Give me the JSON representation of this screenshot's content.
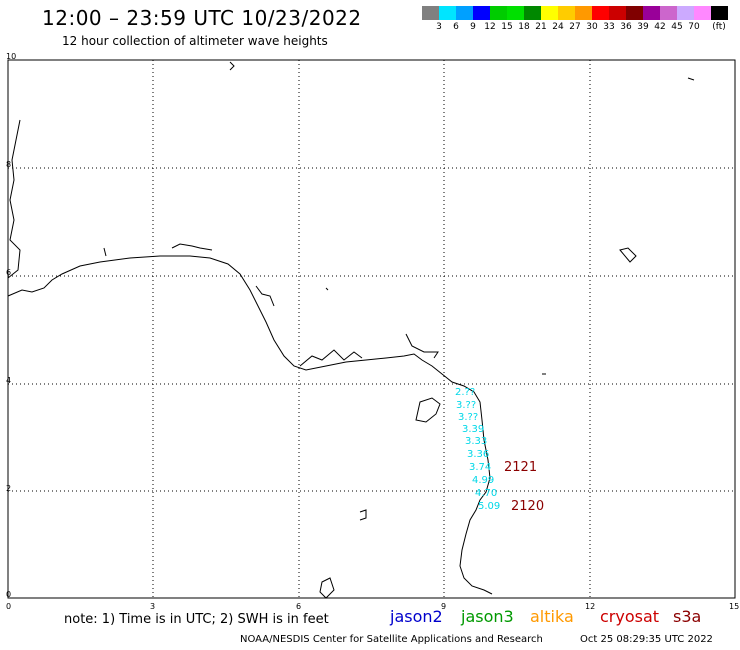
{
  "header": {
    "title": "12:00 – 23:59 UTC 10/23/2022",
    "subtitle": "12 hour collection of altimeter wave heights"
  },
  "colorbar": {
    "colors": [
      "#808080",
      "#00e5ff",
      "#00a0ff",
      "#0000ff",
      "#00cc00",
      "#00e000",
      "#008800",
      "#ffff00",
      "#ffcc00",
      "#ff9900",
      "#ff0000",
      "#cc0000",
      "#800000",
      "#990099",
      "#cc66cc",
      "#ccaaff",
      "#ff88ff",
      "#000000"
    ],
    "labels": [
      "3",
      "6",
      "9",
      "12",
      "15",
      "18",
      "21",
      "24",
      "27",
      "30",
      "33",
      "36",
      "39",
      "42",
      "45",
      "70",
      "(ft)"
    ]
  },
  "axes": {
    "x_ticks": [
      "0",
      "3",
      "6",
      "9",
      "12",
      "15"
    ],
    "y_ticks": [
      "10",
      "8",
      "6",
      "4",
      "2",
      "0"
    ]
  },
  "wave_heights": [
    "2.??",
    "3.??",
    "3.??",
    "3.39",
    "3.33",
    "3.36",
    "3.74",
    "4.99",
    "4.70",
    "5.09"
  ],
  "tracks": [
    {
      "id": "2121"
    },
    {
      "id": "2120"
    }
  ],
  "footer": {
    "note": "note:  1) Time is in UTC;  2) SWH is in feet",
    "satellites": [
      {
        "name": "jason2",
        "color": "#0000cc"
      },
      {
        "name": "jason3",
        "color": "#009900"
      },
      {
        "name": "altika",
        "color": "#ff9900"
      },
      {
        "name": "cryosat",
        "color": "#cc0000"
      },
      {
        "name": "s3a",
        "color": "#8b0000"
      }
    ],
    "credit": "NOAA/NESDIS Center for Satellite Applications and Research",
    "generated": "Oct 25 08:29:35 UTC 2022"
  }
}
